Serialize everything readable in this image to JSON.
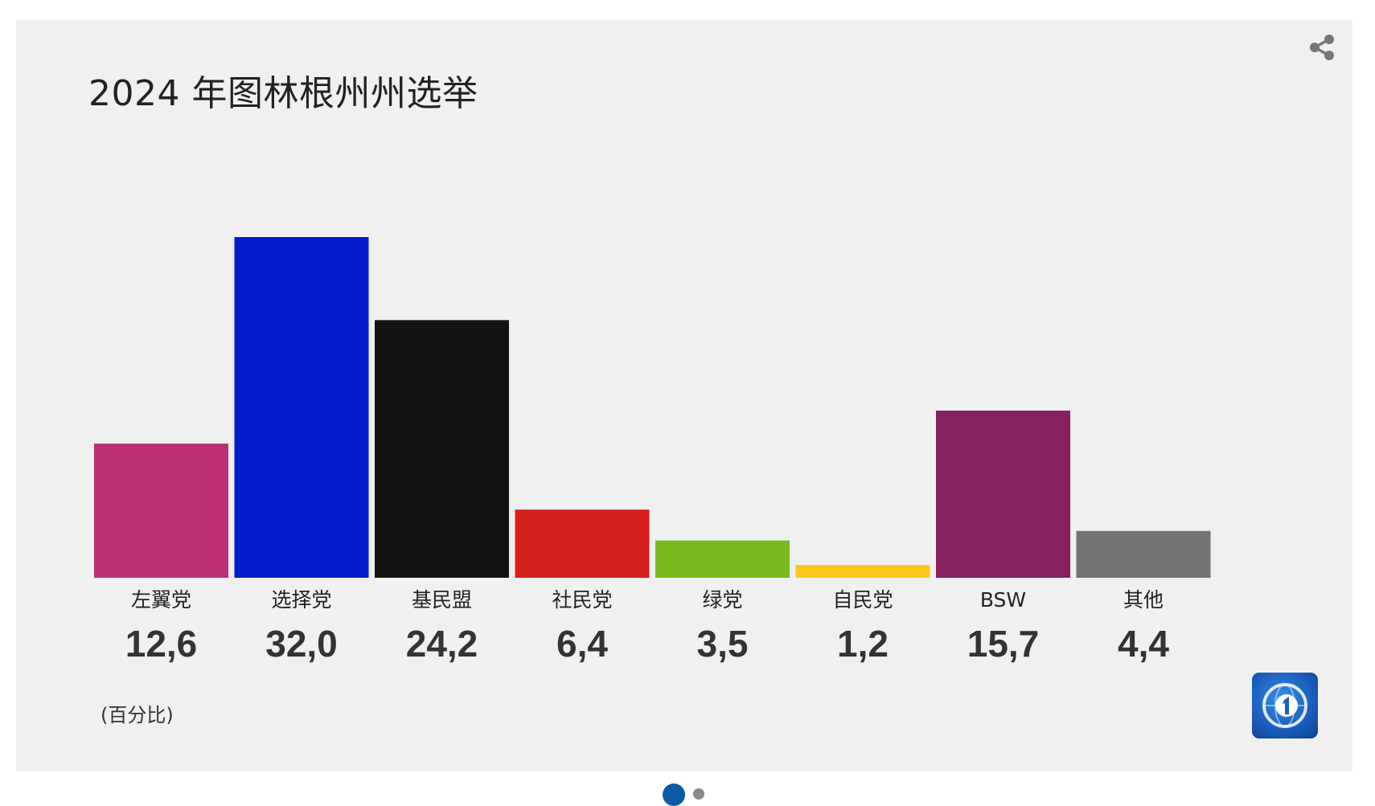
{
  "chart_data": {
    "type": "bar",
    "title": "2024 年图林根州州选举",
    "categories": [
      "左翼党",
      "选择党",
      "基民盟",
      "社民党",
      "绿党",
      "自民党",
      "BSW",
      "其他"
    ],
    "values": [
      12.6,
      32.0,
      24.2,
      6.4,
      3.5,
      1.2,
      15.7,
      4.4
    ],
    "value_labels": [
      "12,6",
      "32,0",
      "24,2",
      "6,4",
      "3,5",
      "1,2",
      "15,7",
      "4,4"
    ],
    "colors": [
      "#bb3073",
      "#031ccb",
      "#141414",
      "#d62020",
      "#78bb1c",
      "#fcc719",
      "#862061",
      "#727272"
    ],
    "unit_note": "(百分比)",
    "ylim": [
      0,
      32
    ],
    "grid": false,
    "legend": "none"
  },
  "icons": {
    "share": "share-icon",
    "logo": "tagesschau-logo"
  },
  "pagination": {
    "count": 2,
    "active_index": 0
  }
}
